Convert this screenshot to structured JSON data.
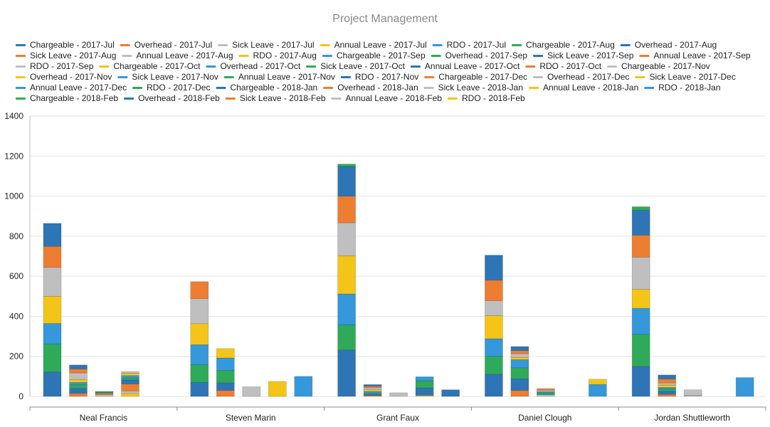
{
  "chart_data": {
    "type": "bar",
    "stacked": true,
    "title": "Project Management",
    "xlabel": "",
    "ylabel": "",
    "ylim": [
      0,
      1400
    ],
    "yticks": [
      0,
      200,
      400,
      600,
      800,
      1000,
      1200,
      1400
    ],
    "grid": true,
    "legend_position": "top",
    "categories": [
      "Neal Francis",
      "Steven Marin",
      "Grant Faux",
      "Daniel Clough",
      "Jordan Shuttleworth"
    ],
    "months": [
      "2017-Jul",
      "2017-Aug",
      "2017-Sep",
      "2017-Oct",
      "2017-Nov",
      "2017-Dec",
      "2018-Jan",
      "2018-Feb"
    ],
    "types": [
      "Chargeable",
      "Overhead",
      "Sick Leave",
      "Annual Leave",
      "RDO"
    ],
    "series_colors": [
      "#2e75b6",
      "#ed7d31",
      "#bfbfbf",
      "#f4c518",
      "#3498db",
      "#2eaa5a"
    ],
    "series": [
      {
        "name": "Chargeable - 2017-Jul",
        "stack": "Chargeable",
        "values": [
          122,
          70,
          232,
          110,
          150
        ]
      },
      {
        "name": "Chargeable - 2017-Aug",
        "stack": "Chargeable",
        "values": [
          140,
          88,
          125,
          90,
          160
        ]
      },
      {
        "name": "Chargeable - 2017-Sep",
        "stack": "Chargeable",
        "values": [
          102,
          100,
          155,
          88,
          130
        ]
      },
      {
        "name": "Chargeable - 2017-Oct",
        "stack": "Chargeable",
        "values": [
          135,
          105,
          190,
          115,
          95
        ]
      },
      {
        "name": "Chargeable - 2017-Nov",
        "stack": "Chargeable",
        "values": [
          145,
          125,
          165,
          75,
          160
        ]
      },
      {
        "name": "Chargeable - 2017-Dec",
        "stack": "Chargeable",
        "values": [
          105,
          85,
          133,
          102,
          110
        ]
      },
      {
        "name": "Chargeable - 2018-Jan",
        "stack": "Chargeable",
        "values": [
          115,
          0,
          148,
          125,
          125
        ]
      },
      {
        "name": "Chargeable - 2018-Feb",
        "stack": "Chargeable",
        "values": [
          0,
          0,
          12,
          0,
          17
        ]
      },
      {
        "name": "Overhead - 2017-Jul",
        "stack": "Overhead",
        "values": [
          15,
          30,
          5,
          30,
          10
        ]
      },
      {
        "name": "Overhead - 2017-Aug",
        "stack": "Overhead",
        "values": [
          25,
          38,
          5,
          58,
          15
        ]
      },
      {
        "name": "Overhead - 2017-Sep",
        "stack": "Overhead",
        "values": [
          18,
          62,
          5,
          55,
          12
        ]
      },
      {
        "name": "Overhead - 2017-Oct",
        "stack": "Overhead",
        "values": [
          12,
          62,
          10,
          40,
          8
        ]
      },
      {
        "name": "Overhead - 2017-Nov",
        "stack": "Overhead",
        "values": [
          15,
          47,
          8,
          12,
          12
        ]
      },
      {
        "name": "Overhead - 2017-Dec",
        "stack": "Overhead",
        "values": [
          32,
          0,
          10,
          18,
          10
        ]
      },
      {
        "name": "Overhead - 2018-Jan",
        "stack": "Overhead",
        "values": [
          20,
          0,
          8,
          16,
          20
        ]
      },
      {
        "name": "Overhead - 2018-Feb",
        "stack": "Overhead",
        "values": [
          20,
          0,
          8,
          20,
          20
        ]
      },
      {
        "name": "Sick Leave - 2017-Jul",
        "stack": "Sick Leave",
        "values": [
          8,
          48,
          18,
          8,
          5
        ]
      },
      {
        "name": "Sick Leave - 2017-Aug",
        "stack": "Sick Leave",
        "values": [
          8,
          0,
          0,
          0,
          0
        ]
      },
      {
        "name": "Sick Leave - 2017-Sep",
        "stack": "Sick Leave",
        "values": [
          0,
          0,
          0,
          0,
          0
        ]
      },
      {
        "name": "Sick Leave - 2017-Oct",
        "stack": "Sick Leave",
        "values": [
          5,
          0,
          0,
          10,
          0
        ]
      },
      {
        "name": "Sick Leave - 2017-Nov",
        "stack": "Sick Leave",
        "values": [
          4,
          0,
          0,
          5,
          0
        ]
      },
      {
        "name": "Sick Leave - 2017-Dec",
        "stack": "Sick Leave",
        "values": [
          0,
          0,
          0,
          0,
          0
        ]
      },
      {
        "name": "Sick Leave - 2018-Jan",
        "stack": "Sick Leave",
        "values": [
          0,
          0,
          0,
          8,
          28
        ]
      },
      {
        "name": "Sick Leave - 2018-Feb",
        "stack": "Sick Leave",
        "values": [
          0,
          0,
          0,
          8,
          0
        ]
      },
      {
        "name": "Annual Leave - 2017-Jul",
        "stack": "Annual Leave",
        "values": [
          15,
          75,
          5,
          0,
          0
        ]
      },
      {
        "name": "Annual Leave - 2017-Aug",
        "stack": "Annual Leave",
        "values": [
          12,
          0,
          0,
          0,
          0
        ]
      },
      {
        "name": "Annual Leave - 2017-Sep",
        "stack": "Annual Leave",
        "values": [
          35,
          0,
          0,
          0,
          0
        ]
      },
      {
        "name": "Annual Leave - 2017-Oct",
        "stack": "Annual Leave",
        "values": [
          20,
          0,
          38,
          0,
          0
        ]
      },
      {
        "name": "Annual Leave - 2017-Nov",
        "stack": "Annual Leave",
        "values": [
          10,
          0,
          35,
          0,
          0
        ]
      },
      {
        "name": "Annual Leave - 2017-Dec",
        "stack": "Annual Leave",
        "values": [
          12,
          0,
          20,
          0,
          0
        ]
      },
      {
        "name": "Annual Leave - 2018-Jan",
        "stack": "Annual Leave",
        "values": [
          12,
          0,
          0,
          0,
          0
        ]
      },
      {
        "name": "Annual Leave - 2018-Feb",
        "stack": "Annual Leave",
        "values": [
          8,
          0,
          0,
          0,
          0
        ]
      },
      {
        "name": "RDO - 2017-Jul",
        "stack": "RDO",
        "values": [
          0,
          100,
          0,
          60,
          0
        ]
      },
      {
        "name": "RDO - 2017-Aug",
        "stack": "RDO",
        "values": [
          0,
          0,
          0,
          26,
          0
        ]
      },
      {
        "name": "RDO - 2017-Sep",
        "stack": "RDO",
        "values": [
          0,
          0,
          0,
          0,
          0
        ]
      },
      {
        "name": "RDO - 2017-Oct",
        "stack": "RDO",
        "values": [
          0,
          0,
          0,
          0,
          0
        ]
      },
      {
        "name": "RDO - 2017-Nov",
        "stack": "RDO",
        "values": [
          0,
          0,
          33,
          0,
          0
        ]
      },
      {
        "name": "RDO - 2017-Dec",
        "stack": "RDO",
        "values": [
          0,
          0,
          0,
          0,
          0
        ]
      },
      {
        "name": "RDO - 2018-Jan",
        "stack": "RDO",
        "values": [
          0,
          0,
          0,
          0,
          94
        ]
      },
      {
        "name": "RDO - 2018-Feb",
        "stack": "RDO",
        "values": [
          0,
          0,
          0,
          0,
          0
        ]
      }
    ]
  }
}
